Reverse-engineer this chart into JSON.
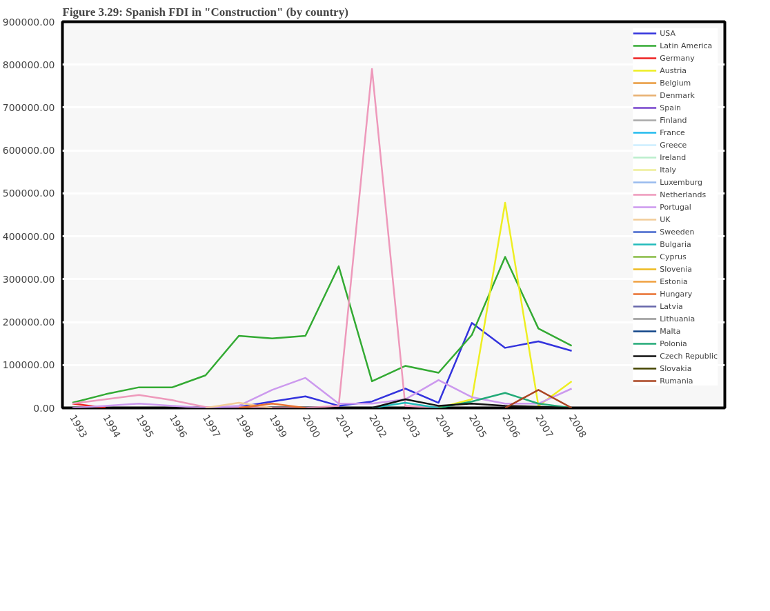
{
  "chart_data": {
    "type": "line",
    "title": "Figure 3.29: Spanish FDI in \"Construction\" (by country)",
    "categories": [
      "1993",
      "1994",
      "1995",
      "1996",
      "1997",
      "1998",
      "1999",
      "2000",
      "2001",
      "2002",
      "2003",
      "2004",
      "2005",
      "2006",
      "2007",
      "2008"
    ],
    "ylim": [
      0,
      900000
    ],
    "yticks": [
      {
        "value": 0,
        "label": "0.00"
      },
      {
        "value": 100000,
        "label": "100000.00"
      },
      {
        "value": 200000,
        "label": "200000.00"
      },
      {
        "value": 300000,
        "label": "300000.00"
      },
      {
        "value": 400000,
        "label": "400000.00"
      },
      {
        "value": 500000,
        "label": "500000.00"
      },
      {
        "value": 600000,
        "label": "600000.00"
      },
      {
        "value": 700000,
        "label": "700000.00"
      },
      {
        "value": 800000,
        "label": "800000.00"
      },
      {
        "value": 900000,
        "label": "900000.00"
      }
    ],
    "grid": "y",
    "legend": "right",
    "marker": "none",
    "line_style": "solid",
    "series": [
      {
        "name": "USA",
        "color": "#3333dd",
        "values": [
          null,
          null,
          null,
          null,
          0,
          2000,
          15000,
          27000,
          5000,
          15000,
          45000,
          12000,
          198000,
          140000,
          155000,
          133000
        ]
      },
      {
        "name": "Latin America",
        "color": "#33aa33",
        "values": [
          12000,
          32000,
          48000,
          48000,
          76000,
          168000,
          162000,
          168000,
          330000,
          62000,
          98000,
          82000,
          170000,
          352000,
          185000,
          145000
        ]
      },
      {
        "name": "Germany",
        "color": "#ee2222",
        "values": [
          10000,
          0,
          null,
          null,
          null,
          null,
          null,
          null,
          null,
          null,
          null,
          null,
          null,
          null,
          null,
          null
        ]
      },
      {
        "name": "Austria",
        "color": "#eeee22",
        "values": [
          null,
          null,
          null,
          null,
          null,
          null,
          null,
          null,
          null,
          null,
          null,
          0,
          20000,
          478000,
          5000,
          62000
        ]
      },
      {
        "name": "Belgium",
        "color": "#e89a3c",
        "values": [
          null,
          null,
          null,
          null,
          null,
          null,
          null,
          null,
          null,
          null,
          null,
          null,
          null,
          null,
          null,
          null
        ]
      },
      {
        "name": "Denmark",
        "color": "#e8b070",
        "values": [
          null,
          null,
          null,
          null,
          null,
          null,
          null,
          null,
          null,
          null,
          null,
          null,
          null,
          null,
          null,
          null
        ]
      },
      {
        "name": "Spain",
        "color": "#7744cc",
        "values": [
          null,
          null,
          null,
          null,
          null,
          null,
          null,
          null,
          null,
          null,
          null,
          null,
          null,
          null,
          null,
          null
        ]
      },
      {
        "name": "Finland",
        "color": "#aaaaaa",
        "values": [
          null,
          null,
          null,
          null,
          null,
          null,
          null,
          null,
          null,
          null,
          null,
          null,
          null,
          null,
          null,
          null
        ]
      },
      {
        "name": "France",
        "color": "#22bbee",
        "values": [
          null,
          null,
          null,
          null,
          null,
          null,
          null,
          null,
          null,
          null,
          null,
          null,
          null,
          null,
          null,
          null
        ]
      },
      {
        "name": "Greece",
        "color": "#cceeff",
        "values": [
          null,
          null,
          null,
          null,
          null,
          null,
          null,
          null,
          null,
          null,
          null,
          null,
          null,
          null,
          null,
          null
        ]
      },
      {
        "name": "Ireland",
        "color": "#bbeecc",
        "values": [
          null,
          null,
          null,
          null,
          null,
          null,
          null,
          null,
          null,
          null,
          null,
          null,
          null,
          null,
          null,
          null
        ]
      },
      {
        "name": "Italy",
        "color": "#eeee99",
        "values": [
          null,
          null,
          null,
          null,
          null,
          null,
          null,
          null,
          null,
          null,
          null,
          null,
          null,
          null,
          null,
          null
        ]
      },
      {
        "name": "Luxemburg",
        "color": "#99bbee",
        "values": [
          null,
          null,
          null,
          null,
          null,
          null,
          null,
          null,
          null,
          null,
          null,
          null,
          null,
          null,
          null,
          null
        ]
      },
      {
        "name": "Netherlands",
        "color": "#ee99bb",
        "values": [
          10000,
          20000,
          30000,
          18000,
          2000,
          2000,
          0,
          0,
          5000,
          790000,
          5000,
          0,
          null,
          null,
          null,
          null
        ]
      },
      {
        "name": "Portugal",
        "color": "#cc99ee",
        "values": [
          0,
          5000,
          10000,
          5000,
          0,
          5000,
          42000,
          70000,
          10000,
          10000,
          20000,
          65000,
          25000,
          10000,
          10000,
          45000
        ]
      },
      {
        "name": "UK",
        "color": "#f2cc99",
        "values": [
          null,
          null,
          null,
          null,
          0,
          12000,
          0,
          null,
          null,
          null,
          null,
          null,
          null,
          null,
          null,
          null
        ]
      },
      {
        "name": "Sweeden",
        "color": "#4466cc",
        "values": [
          null,
          null,
          null,
          null,
          null,
          null,
          null,
          null,
          null,
          null,
          null,
          null,
          null,
          null,
          null,
          null
        ]
      },
      {
        "name": "Bulgaria",
        "color": "#22bbbb",
        "values": [
          null,
          null,
          null,
          null,
          null,
          null,
          null,
          null,
          null,
          0,
          12000,
          0,
          null,
          null,
          null,
          null
        ]
      },
      {
        "name": "Cyprus",
        "color": "#88bb44",
        "values": [
          null,
          null,
          null,
          null,
          null,
          null,
          null,
          null,
          null,
          null,
          null,
          null,
          null,
          null,
          null,
          null
        ]
      },
      {
        "name": "Slovenia",
        "color": "#eebb22",
        "values": [
          null,
          null,
          null,
          null,
          null,
          null,
          null,
          null,
          null,
          null,
          null,
          null,
          null,
          null,
          null,
          null
        ]
      },
      {
        "name": "Estonia",
        "color": "#f0a040",
        "values": [
          null,
          null,
          null,
          null,
          null,
          null,
          null,
          null,
          null,
          null,
          null,
          null,
          null,
          null,
          null,
          null
        ]
      },
      {
        "name": "Hungary",
        "color": "#e87030",
        "values": [
          null,
          null,
          null,
          null,
          null,
          0,
          10000,
          0,
          null,
          null,
          null,
          null,
          null,
          null,
          null,
          null
        ]
      },
      {
        "name": "Latvia",
        "color": "#6666aa",
        "values": [
          null,
          null,
          null,
          null,
          null,
          null,
          null,
          null,
          null,
          null,
          null,
          null,
          null,
          null,
          null,
          null
        ]
      },
      {
        "name": "Lithuania",
        "color": "#999999",
        "values": [
          null,
          null,
          null,
          null,
          null,
          null,
          null,
          null,
          null,
          null,
          null,
          null,
          null,
          null,
          null,
          null
        ]
      },
      {
        "name": "Malta",
        "color": "#114488",
        "values": [
          null,
          null,
          null,
          null,
          null,
          null,
          null,
          null,
          null,
          null,
          null,
          null,
          null,
          null,
          null,
          null
        ]
      },
      {
        "name": "Polonia",
        "color": "#22aa77",
        "values": [
          null,
          null,
          null,
          null,
          null,
          null,
          null,
          null,
          null,
          null,
          null,
          0,
          15000,
          35000,
          10000,
          0
        ]
      },
      {
        "name": "Czech Republic",
        "color": "#111111",
        "values": [
          null,
          null,
          null,
          null,
          null,
          null,
          null,
          null,
          null,
          0,
          20000,
          5000,
          10000,
          5000,
          3000,
          0
        ]
      },
      {
        "name": "Slovakia",
        "color": "#444400",
        "values": [
          null,
          null,
          null,
          null,
          null,
          null,
          null,
          null,
          null,
          null,
          null,
          null,
          null,
          null,
          null,
          null
        ]
      },
      {
        "name": "Rumania",
        "color": "#aa4422",
        "values": [
          null,
          null,
          null,
          null,
          null,
          null,
          null,
          null,
          null,
          null,
          null,
          null,
          null,
          0,
          42000,
          0
        ]
      }
    ]
  }
}
